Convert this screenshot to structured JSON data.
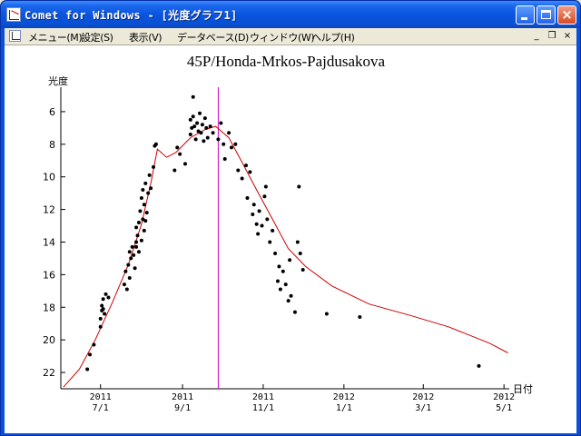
{
  "window": {
    "title": "Comet for Windows - [光度グラフ1]",
    "frame_color": "#0a51d8"
  },
  "menu": {
    "items": [
      {
        "id": "menu",
        "label": "メニュー(M)"
      },
      {
        "id": "settings",
        "label": "設定(S)"
      },
      {
        "id": "view",
        "label": "表示(V)"
      },
      {
        "id": "database",
        "label": "データベース(D)"
      },
      {
        "id": "window",
        "label": "ウィンドウ(W)"
      },
      {
        "id": "help",
        "label": "ヘルプ(H)"
      }
    ],
    "mdi_controls": {
      "minimize": "_",
      "restore": "❐",
      "close": "×"
    }
  },
  "icons": {
    "app": "light-curve-icon",
    "child": "light-curve-icon"
  },
  "chart_data": {
    "type": "scatter",
    "title": "45P/Honda-Mrkos-Pajdusakova",
    "ylabel": "光度",
    "xlabel": "日付",
    "x_axis": {
      "type": "date",
      "range": [
        "2011-06-01",
        "2012-05-05"
      ],
      "ticks": [
        {
          "date": "2011-07-01",
          "label_year": "2011",
          "label_md": "7/1"
        },
        {
          "date": "2011-09-01",
          "label_year": "2011",
          "label_md": "9/1"
        },
        {
          "date": "2011-11-01",
          "label_year": "2011",
          "label_md": "11/1"
        },
        {
          "date": "2012-01-01",
          "label_year": "2012",
          "label_md": "1/1"
        },
        {
          "date": "2012-03-01",
          "label_year": "2012",
          "label_md": "3/1"
        },
        {
          "date": "2012-05-01",
          "label_year": "2012",
          "label_md": "5/1"
        }
      ]
    },
    "y_axis": {
      "inverted": true,
      "range": [
        4.5,
        23.0
      ],
      "ticks": [
        6,
        8,
        10,
        12,
        14,
        16,
        18,
        20,
        22
      ]
    },
    "vertical_marker": {
      "date": "2011-09-28",
      "color": "#cc00cc"
    },
    "model_curve": {
      "color": "#cc0000",
      "points": [
        [
          "2011-06-03",
          22.9
        ],
        [
          "2011-06-15",
          21.8
        ],
        [
          "2011-06-27",
          20.0
        ],
        [
          "2011-07-10",
          17.7
        ],
        [
          "2011-07-22",
          15.4
        ],
        [
          "2011-08-01",
          12.9
        ],
        [
          "2011-08-08",
          10.4
        ],
        [
          "2011-08-13",
          8.3
        ],
        [
          "2011-08-20",
          8.8
        ],
        [
          "2011-08-27",
          8.5
        ],
        [
          "2011-09-07",
          7.6
        ],
        [
          "2011-09-18",
          7.1
        ],
        [
          "2011-09-26",
          6.9
        ],
        [
          "2011-10-06",
          7.6
        ],
        [
          "2011-10-16",
          9.1
        ],
        [
          "2011-10-27",
          10.8
        ],
        [
          "2011-11-08",
          12.6
        ],
        [
          "2011-11-20",
          14.4
        ],
        [
          "2011-12-03",
          15.5
        ],
        [
          "2011-12-23",
          16.7
        ],
        [
          "2012-01-20",
          17.8
        ],
        [
          "2012-02-20",
          18.5
        ],
        [
          "2012-03-20",
          19.2
        ],
        [
          "2012-04-20",
          20.2
        ],
        [
          "2012-05-04",
          20.8
        ]
      ]
    },
    "observations": {
      "color": "#000000",
      "points": [
        [
          "2011-06-21",
          21.8
        ],
        [
          "2011-06-23",
          20.9
        ],
        [
          "2011-06-26",
          20.3
        ],
        [
          "2011-07-01",
          19.2
        ],
        [
          "2011-07-01",
          18.7
        ],
        [
          "2011-07-02",
          18.2
        ],
        [
          "2011-07-02",
          17.9
        ],
        [
          "2011-07-03",
          17.5
        ],
        [
          "2011-07-03",
          18.1
        ],
        [
          "2011-07-04",
          18.4
        ],
        [
          "2011-07-05",
          17.2
        ],
        [
          "2011-07-07",
          17.4
        ],
        [
          "2011-07-20",
          15.8
        ],
        [
          "2011-07-22",
          15.4
        ],
        [
          "2011-07-23",
          16.2
        ],
        [
          "2011-07-24",
          15.0
        ],
        [
          "2011-07-25",
          14.3
        ],
        [
          "2011-07-26",
          14.8
        ],
        [
          "2011-07-27",
          15.6
        ],
        [
          "2011-07-28",
          14.0
        ],
        [
          "2011-07-28",
          13.1
        ],
        [
          "2011-07-29",
          13.6
        ],
        [
          "2011-07-30",
          12.8
        ],
        [
          "2011-07-30",
          14.6
        ],
        [
          "2011-07-31",
          12.1
        ],
        [
          "2011-08-01",
          13.9
        ],
        [
          "2011-08-01",
          11.3
        ],
        [
          "2011-08-02",
          12.6
        ],
        [
          "2011-08-02",
          10.8
        ],
        [
          "2011-08-03",
          11.7
        ],
        [
          "2011-08-03",
          13.3
        ],
        [
          "2011-08-04",
          10.4
        ],
        [
          "2011-08-05",
          12.2
        ],
        [
          "2011-08-06",
          11.0
        ],
        [
          "2011-08-07",
          9.9
        ],
        [
          "2011-08-08",
          10.7
        ],
        [
          "2011-08-10",
          9.4
        ],
        [
          "2011-08-11",
          8.1
        ],
        [
          "2011-08-12",
          8.0
        ],
        [
          "2011-07-21",
          16.9
        ],
        [
          "2011-07-19",
          16.6
        ],
        [
          "2011-07-23",
          14.6
        ],
        [
          "2011-07-28",
          14.3
        ],
        [
          "2011-08-04",
          12.7
        ],
        [
          "2011-08-26",
          9.6
        ],
        [
          "2011-08-28",
          8.2
        ],
        [
          "2011-08-30",
          8.6
        ],
        [
          "2011-09-03",
          9.2
        ],
        [
          "2011-09-07",
          6.5
        ],
        [
          "2011-09-07",
          7.4
        ],
        [
          "2011-09-08",
          7.0
        ],
        [
          "2011-09-09",
          5.1
        ],
        [
          "2011-09-09",
          6.3
        ],
        [
          "2011-09-10",
          6.9
        ],
        [
          "2011-09-11",
          7.7
        ],
        [
          "2011-09-12",
          6.7
        ],
        [
          "2011-09-13",
          7.2
        ],
        [
          "2011-09-14",
          6.1
        ],
        [
          "2011-09-15",
          7.3
        ],
        [
          "2011-09-16",
          6.8
        ],
        [
          "2011-09-17",
          7.8
        ],
        [
          "2011-09-18",
          6.4
        ],
        [
          "2011-09-19",
          7.0
        ],
        [
          "2011-09-20",
          7.6
        ],
        [
          "2011-09-22",
          6.9
        ],
        [
          "2011-09-24",
          7.3
        ],
        [
          "2011-09-28",
          7.7
        ],
        [
          "2011-09-30",
          6.7
        ],
        [
          "2011-10-02",
          8.0
        ],
        [
          "2011-10-03",
          8.9
        ],
        [
          "2011-10-06",
          7.3
        ],
        [
          "2011-10-08",
          8.2
        ],
        [
          "2011-10-11",
          8.0
        ],
        [
          "2011-10-13",
          9.6
        ],
        [
          "2011-10-16",
          10.1
        ],
        [
          "2011-10-19",
          9.3
        ],
        [
          "2011-10-20",
          11.3
        ],
        [
          "2011-10-22",
          9.7
        ],
        [
          "2011-10-24",
          12.3
        ],
        [
          "2011-10-25",
          11.7
        ],
        [
          "2011-10-27",
          12.9
        ],
        [
          "2011-10-28",
          13.5
        ],
        [
          "2011-10-29",
          12.1
        ],
        [
          "2011-10-31",
          13.0
        ],
        [
          "2011-11-02",
          11.2
        ],
        [
          "2011-11-03",
          10.6
        ],
        [
          "2011-11-04",
          12.6
        ],
        [
          "2011-11-06",
          14.0
        ],
        [
          "2011-11-08",
          13.3
        ],
        [
          "2011-11-10",
          14.7
        ],
        [
          "2011-11-12",
          16.4
        ],
        [
          "2011-11-13",
          15.5
        ],
        [
          "2011-11-14",
          16.9
        ],
        [
          "2011-11-16",
          15.8
        ],
        [
          "2011-11-18",
          16.6
        ],
        [
          "2011-11-20",
          17.6
        ],
        [
          "2011-11-21",
          15.1
        ],
        [
          "2011-11-22",
          17.3
        ],
        [
          "2011-11-25",
          18.3
        ],
        [
          "2011-11-27",
          14.0
        ],
        [
          "2011-11-29",
          14.7
        ],
        [
          "2011-11-28",
          10.6
        ],
        [
          "2011-12-01",
          15.7
        ],
        [
          "2011-12-19",
          18.4
        ],
        [
          "2012-01-13",
          18.6
        ],
        [
          "2012-04-12",
          21.6
        ]
      ]
    }
  }
}
